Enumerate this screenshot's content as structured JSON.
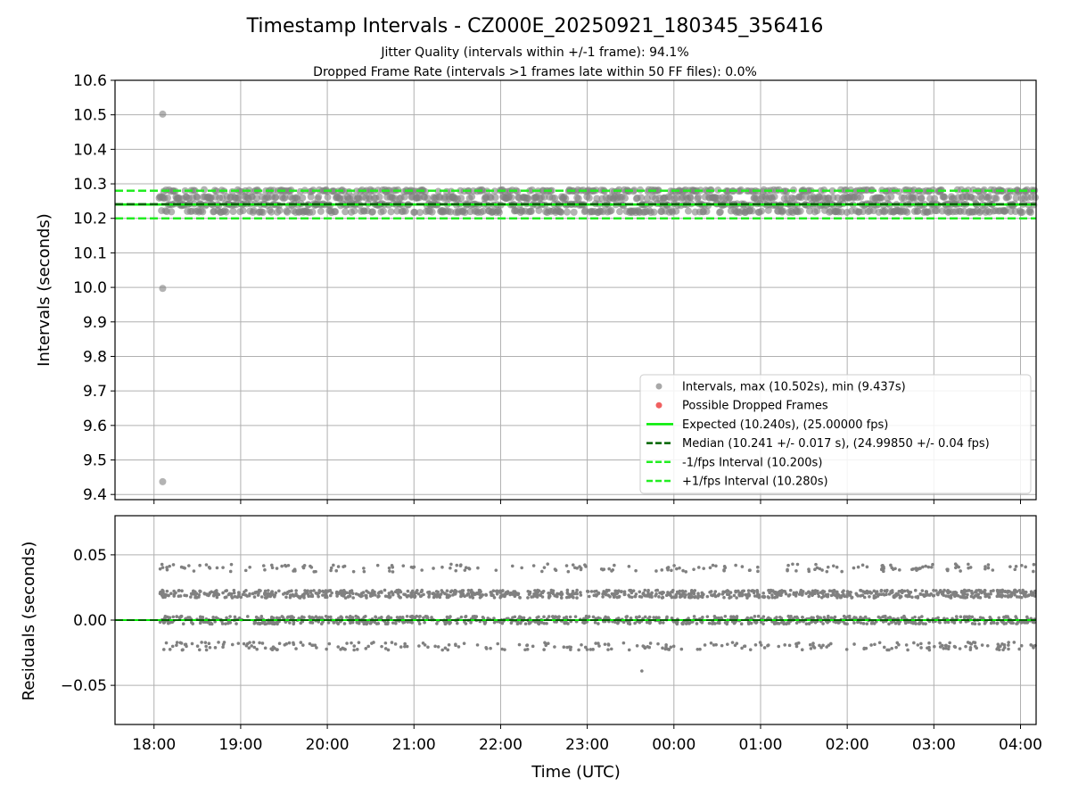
{
  "title": "Timestamp Intervals - CZ000E_20250921_180345_356416",
  "subtitle_lines": [
    "Jitter Quality (intervals within +/-1 frame): 94.1%",
    "Dropped Frame Rate (intervals >1 frames late within 50 FF files): 0.0%"
  ],
  "colors": {
    "points": "#808080",
    "dropped": "#ff0000",
    "expected": "#00ee00",
    "median": "#006400",
    "fps_band": "#22ee22",
    "grid": "#b0b0b0"
  },
  "chart_data": [
    {
      "type": "scatter",
      "name": "intervals",
      "ylabel": "Intervals (seconds)",
      "ylim": [
        9.385,
        10.6
      ],
      "yticks": [
        "10.6",
        "10.5",
        "10.4",
        "10.3",
        "10.2",
        "10.1",
        "10.0",
        "9.9",
        "9.8",
        "9.7",
        "9.6",
        "9.5",
        "9.4"
      ],
      "ytick_values": [
        10.6,
        10.5,
        10.4,
        10.3,
        10.2,
        10.1,
        10.0,
        9.9,
        9.8,
        9.7,
        9.6,
        9.5,
        9.4
      ],
      "grid": true,
      "x_start_hours": 18.06,
      "x_end_hours": 28.17,
      "sample_interval_seconds": 10.24,
      "interval_levels": [
        10.22,
        10.24,
        10.26,
        10.28
      ],
      "outliers": [
        {
          "x_hours": 18.1,
          "y": 10.502
        },
        {
          "x_hours": 18.1,
          "y": 9.997
        },
        {
          "x_hours": 18.1,
          "y": 9.437
        }
      ],
      "lines": {
        "expected": 10.24,
        "median": 10.241,
        "minus_fps": 10.2,
        "plus_fps": 10.28
      },
      "legend_position": "lower-right",
      "legend": [
        {
          "kind": "dot",
          "color": "#a8a8a8",
          "label": "Intervals, max (10.502s), min (9.437s)"
        },
        {
          "kind": "dot",
          "color": "#f06060",
          "label": "Possible Dropped Frames"
        },
        {
          "kind": "solid",
          "color": "#00ee00",
          "label": "Expected (10.240s), (25.00000 fps)"
        },
        {
          "kind": "dashed",
          "color": "#006400",
          "label": "Median (10.241 +/- 0.017 s), (24.99850 +/- 0.04 fps)"
        },
        {
          "kind": "dashed",
          "color": "#22ee22",
          "label": "-1/fps Interval (10.200s)"
        },
        {
          "kind": "dashed",
          "color": "#22ee22",
          "label": "+1/fps Interval (10.280s)"
        }
      ]
    },
    {
      "type": "scatter",
      "name": "residuals",
      "ylabel": "Residuals (seconds)",
      "xlabel": "Time (UTC)",
      "ylim": [
        -0.08,
        0.08
      ],
      "yticks": [
        "0.05",
        "0.00",
        "−0.05"
      ],
      "ytick_values": [
        0.05,
        0.0,
        -0.05
      ],
      "grid": true,
      "residual_levels": [
        -0.02,
        0.0,
        0.02,
        0.04
      ],
      "outlier_residuals": [
        {
          "x_hours": 23.63,
          "y": -0.039
        }
      ],
      "zero_line": 0.0
    }
  ],
  "x_axis": {
    "xlim_hours": [
      17.55,
      28.18
    ],
    "tick_hours": [
      18,
      19,
      20,
      21,
      22,
      23,
      24,
      25,
      26,
      27,
      28
    ],
    "tick_labels": [
      "18:00",
      "19:00",
      "20:00",
      "21:00",
      "22:00",
      "23:00",
      "00:00",
      "01:00",
      "02:00",
      "03:00",
      "04:00"
    ]
  }
}
